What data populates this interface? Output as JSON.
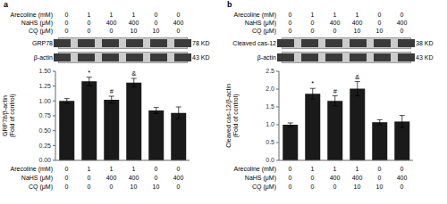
{
  "chart_data": [
    {
      "type": "bar",
      "title": "a",
      "categories": [
        null,
        null,
        null,
        null,
        null,
        null
      ],
      "values": [
        1.0,
        1.33,
        1.02,
        1.31,
        0.84,
        0.8
      ],
      "errors": [
        0.04,
        0.07,
        0.06,
        0.07,
        0.05,
        0.1
      ],
      "color": "#1a1a1a",
      "ylabel": "GRP78/β-actin\n(Fold of control)",
      "ylim": [
        0,
        1.5
      ],
      "yticks": [
        {
          "value": 0,
          "label": "0.00"
        },
        0.25,
        {
          "value": 0.5,
          "label": "0.50"
        },
        0.75,
        {
          "value": 1,
          "label": "1.00"
        },
        1.25,
        {
          "value": 1.5,
          "label": "1.50"
        }
      ],
      "tick_labels": "y",
      "sig_labels": [
        null,
        "*",
        "#",
        "&",
        null,
        null
      ],
      "blot": {
        "labels": [
          "GRP78",
          "β-actin"
        ],
        "kd": [
          "78 KD",
          "43 KD"
        ]
      },
      "table": {
        "row_labels": [
          "Arecoline (mM)",
          "NaHS (μM)",
          "CQ (μM)"
        ],
        "rows": [
          [
            "0",
            "1",
            "1",
            "1",
            "0",
            "0"
          ],
          [
            "0",
            "0",
            "400",
            "400",
            "0",
            "400"
          ],
          [
            "0",
            "0",
            "0",
            "10",
            "10",
            "0"
          ]
        ]
      }
    },
    {
      "type": "bar",
      "title": "b",
      "categories": [
        null,
        null,
        null,
        null,
        null,
        null
      ],
      "values": [
        1.0,
        1.87,
        1.67,
        2.01,
        1.07,
        1.09
      ],
      "errors": [
        0.05,
        0.15,
        0.14,
        0.2,
        0.07,
        0.17
      ],
      "color": "#1a1a1a",
      "ylabel": "Cleaved cas-12/β-actin\n(Fold of control)",
      "ylim": [
        0,
        2.5
      ],
      "yticks": [
        {
          "value": 0,
          "label": "0.0"
        },
        0.5,
        {
          "value": 1,
          "label": "1.0"
        },
        1.5,
        {
          "value": 2,
          "label": "2.0"
        },
        2.5
      ],
      "tick_labels": "y",
      "sig_labels": [
        null,
        "*",
        "#",
        "&",
        null,
        null
      ],
      "blot": {
        "labels": [
          "Cleaved cas-12",
          "β-actin"
        ],
        "kd": [
          "38 KD",
          "43 KD"
        ]
      },
      "table": {
        "row_labels": [
          "Arecoline (mM)",
          "NaHS (μM)",
          "CQ (μM)"
        ],
        "rows": [
          [
            "0",
            "1",
            "1",
            "1",
            "0",
            "0"
          ],
          [
            "0",
            "0",
            "400",
            "400",
            "0",
            "400"
          ],
          [
            "0",
            "0",
            "0",
            "10",
            "10",
            "0"
          ]
        ]
      }
    }
  ]
}
